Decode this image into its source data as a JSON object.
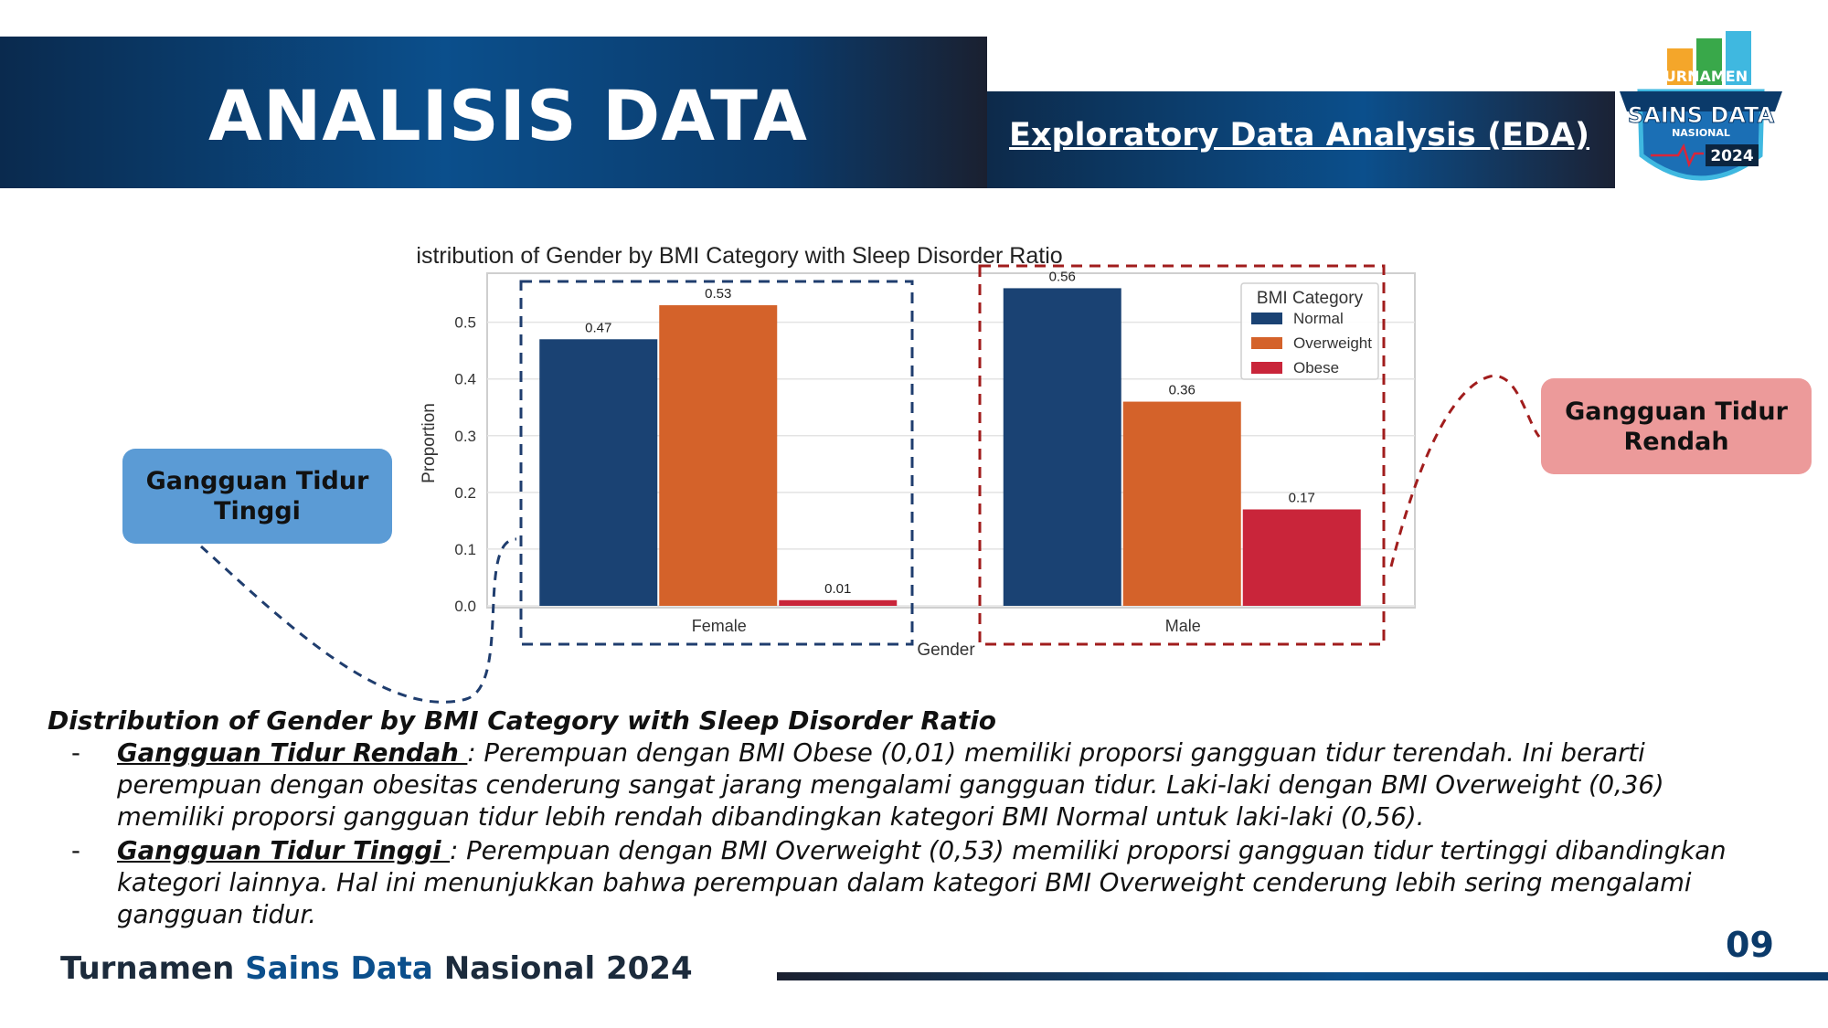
{
  "header": {
    "title": "ANALISIS DATA",
    "subtitle": "Exploratory Data Analysis (EDA)"
  },
  "logo": {
    "line1": "TURNAMEN",
    "line2": "SAINS DATA",
    "line3": "NASIONAL",
    "year": "2024",
    "icon": "bar-chart-shield-logo"
  },
  "chart_data": {
    "type": "bar",
    "title": "Distribution of Gender by BMI Category with Sleep Disorder Ratio",
    "xlabel": "Gender",
    "ylabel": "Proportion",
    "categories": [
      "Female",
      "Male"
    ],
    "series": [
      {
        "name": "Normal",
        "values": [
          0.47,
          0.56
        ],
        "color": "#1a4273"
      },
      {
        "name": "Overweight",
        "values": [
          0.53,
          0.36
        ],
        "color": "#d4622a"
      },
      {
        "name": "Obese",
        "values": [
          0.01,
          0.17
        ],
        "color": "#c9253a"
      }
    ],
    "data_labels": [
      [
        "0.47",
        "0.56"
      ],
      [
        "0.53",
        "0.36"
      ],
      [
        "0.01",
        "0.17"
      ]
    ],
    "yticks": [
      "0.0",
      "0.1",
      "0.2",
      "0.3",
      "0.4",
      "0.5"
    ],
    "ylim": [
      0,
      0.58
    ],
    "legend_title": "BMI Category",
    "legend_position": "upper-right",
    "grid": true
  },
  "callouts": {
    "high": "Gangguan Tidur Tinggi",
    "low": "Gangguan Tidur Rendah"
  },
  "colors": {
    "high_box": "#1f3d6e",
    "low_box": "#a11d1d"
  },
  "analysis": {
    "heading": "Distribution of Gender by BMI Category with Sleep Disorder Ratio",
    "bullets": [
      {
        "dash": "-",
        "term": "Gangguan Tidur Rendah ",
        "text": ": Perempuan dengan BMI Obese (0,01) memiliki proporsi gangguan tidur terendah. Ini berarti perempuan dengan obesitas cenderung sangat jarang mengalami gangguan tidur. Laki-laki dengan BMI Overweight (0,36) memiliki proporsi gangguan tidur lebih rendah dibandingkan kategori BMI Normal untuk laki-laki (0,56)."
      },
      {
        "dash": "-",
        "term": "Gangguan Tidur Tinggi ",
        "text": ": Perempuan dengan BMI Overweight (0,53) memiliki proporsi gangguan tidur tertinggi dibandingkan kategori lainnya. Hal ini menunjukkan bahwa perempuan dalam kategori BMI Overweight cenderung lebih sering mengalami gangguan tidur."
      }
    ]
  },
  "footer": {
    "part_a": "Turnamen ",
    "part_b": "Sains Data ",
    "part_c": "Nasional 2024",
    "page": "09"
  }
}
